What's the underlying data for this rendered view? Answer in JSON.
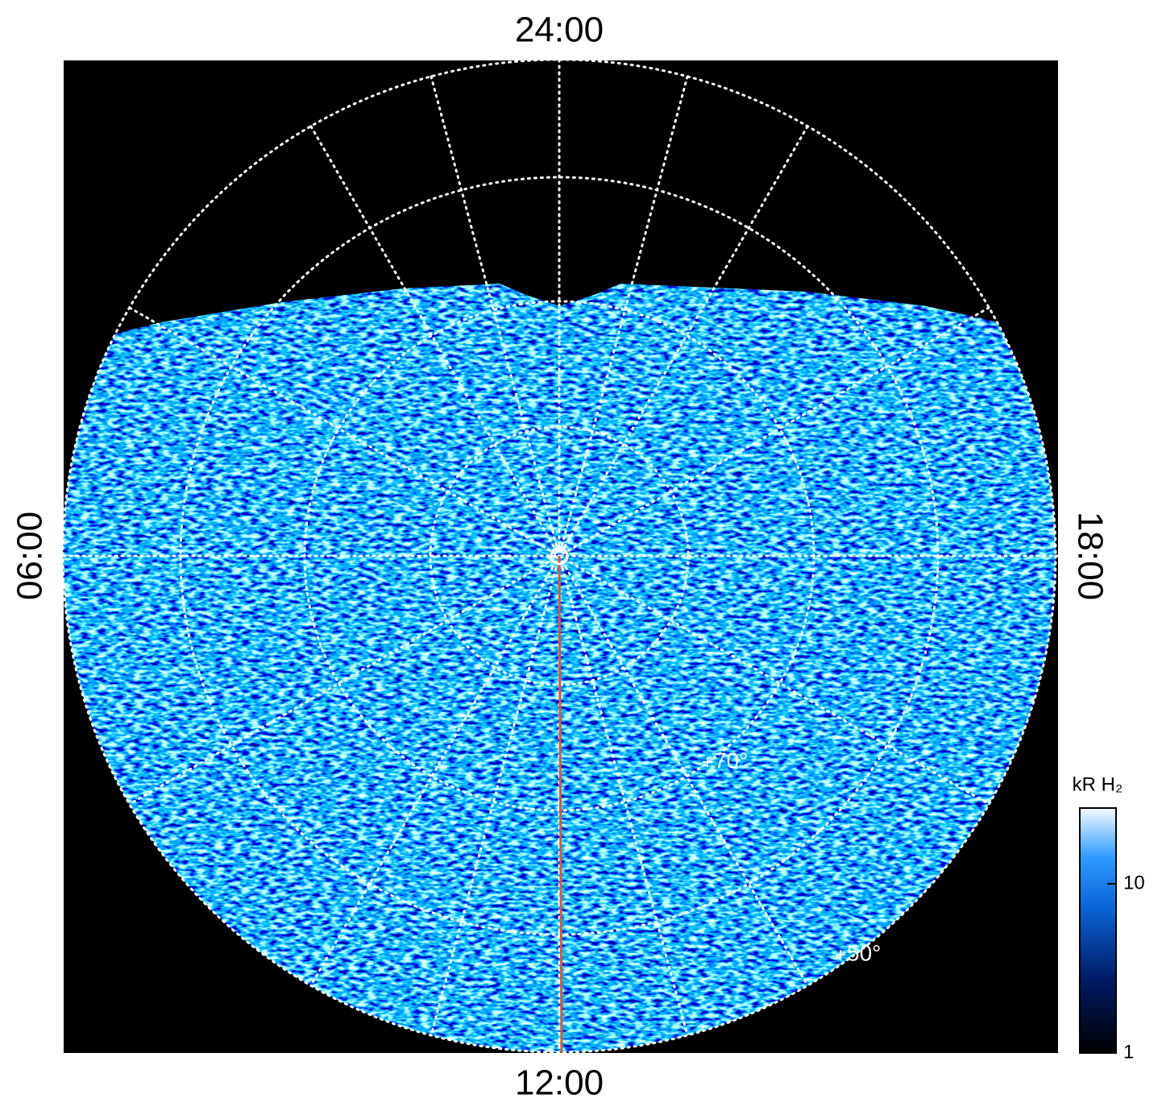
{
  "chart_data": {
    "type": "polar-map",
    "labels": {
      "top": "24:00",
      "left": "06:00",
      "right": "18:00",
      "bottom": "12:00"
    },
    "latitude_labels": [
      "70°",
      "50°"
    ],
    "colorbar": {
      "title": "kR H₂",
      "log": true,
      "lim": [
        1,
        28
      ],
      "ticks": [
        1,
        10
      ]
    }
  }
}
